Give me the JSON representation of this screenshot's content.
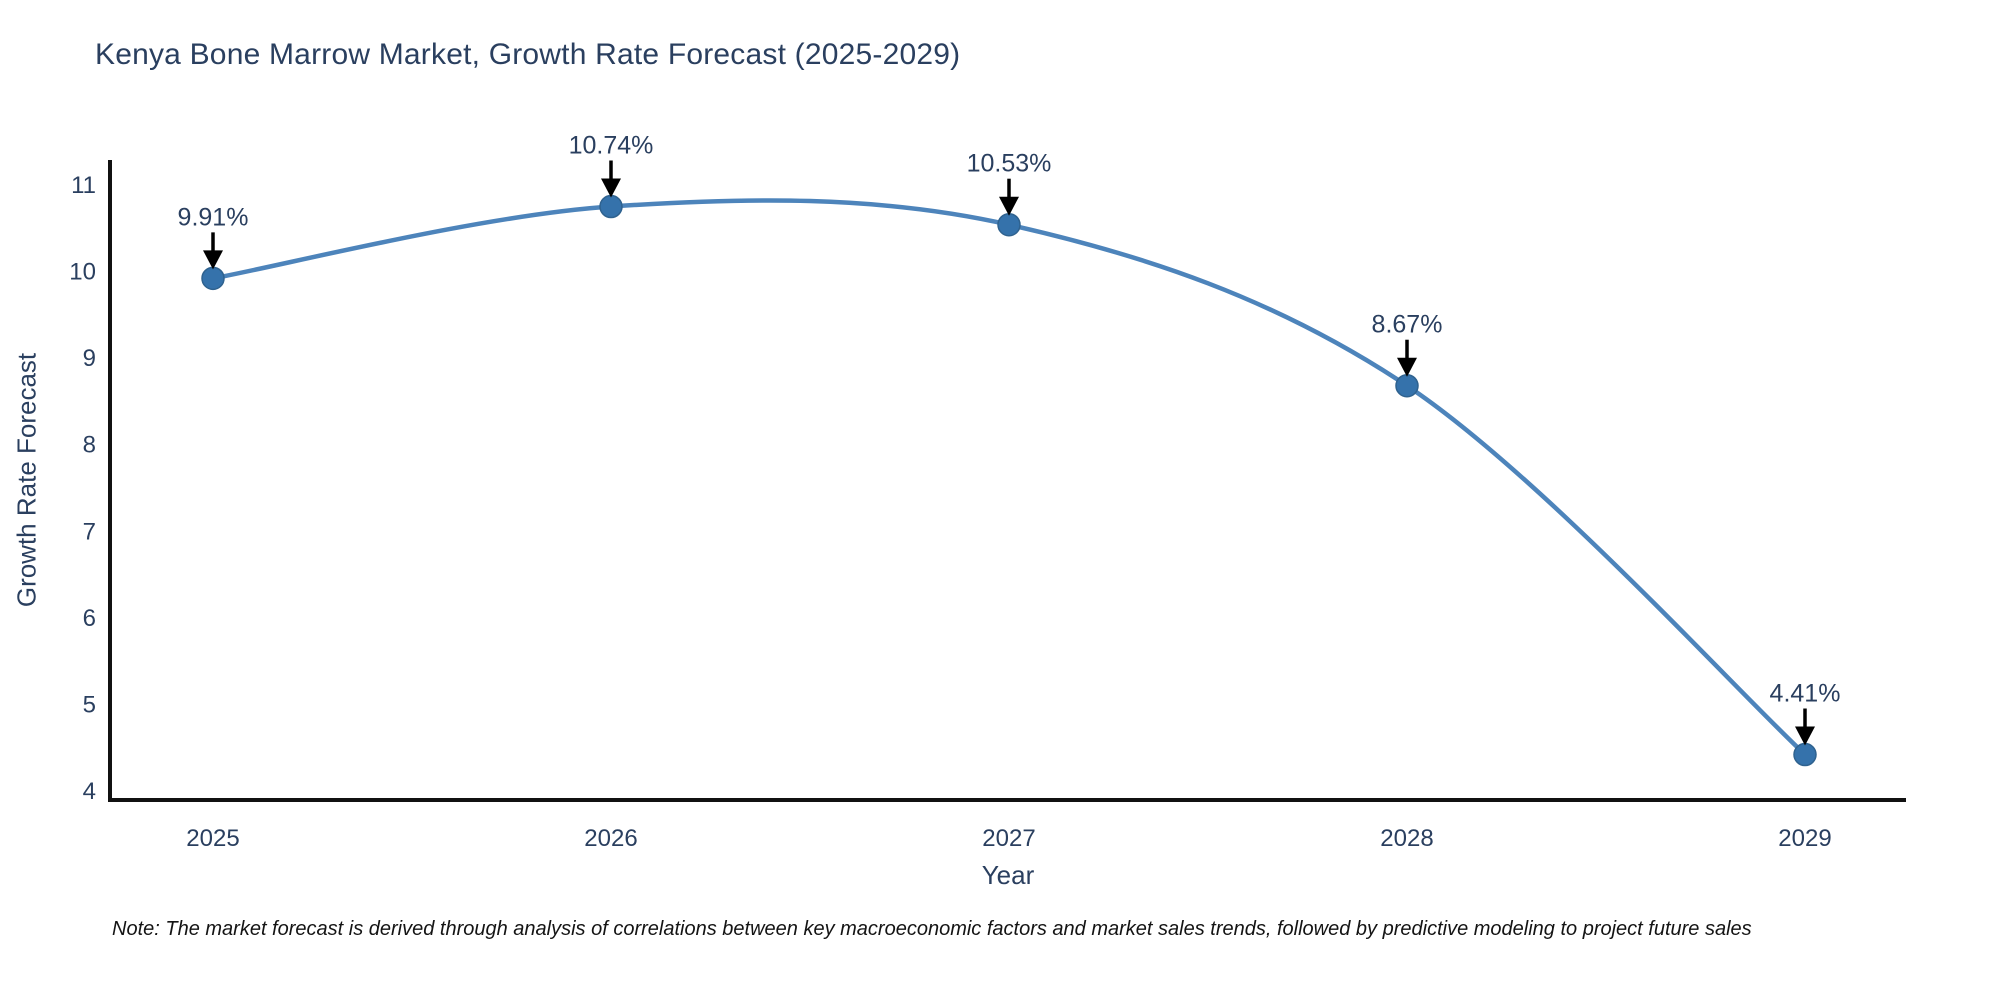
{
  "title": "Kenya Bone Marrow Market, Growth Rate Forecast (2025-2029)",
  "note": "Note: The market forecast is derived through analysis of correlations between key macroeconomic factors and market sales trends, followed by predictive modeling to project future sales",
  "chart_data": {
    "type": "line",
    "line_shape": "spline",
    "title": "Kenya Bone Marrow Market, Growth Rate Forecast (2025-2029)",
    "xlabel": "Year",
    "ylabel": "Growth Rate Forecast",
    "categories": [
      "2025",
      "2026",
      "2027",
      "2028",
      "2029"
    ],
    "series": [
      {
        "name": "Growth Rate Forecast",
        "values": [
          9.91,
          10.74,
          10.53,
          8.67,
          4.41
        ]
      }
    ],
    "point_labels": [
      "9.91%",
      "10.74%",
      "10.53%",
      "8.67%",
      "4.41%"
    ],
    "ylim": [
      4,
      11
    ],
    "y_ticks": [
      4,
      5,
      6,
      7,
      8,
      9,
      10,
      11
    ],
    "grid": false,
    "legend": false,
    "colors": {
      "line": "#4d84bb",
      "marker": "#3572ab",
      "arrow": "#000000",
      "text": "#2a3f5f",
      "axis": "#111111",
      "background": "#ffffff"
    }
  }
}
